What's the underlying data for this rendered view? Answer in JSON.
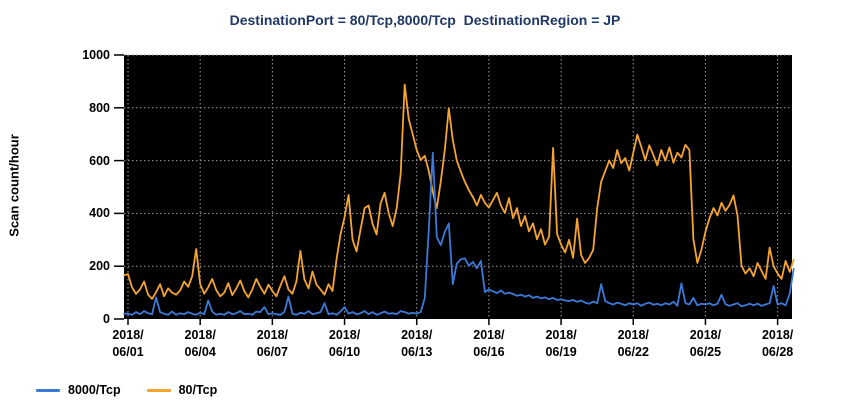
{
  "title": "DestinationPort = 80/Tcp,8000/Tcp  DestinationRegion = JP",
  "title_color": "#1f3864",
  "chart_data": {
    "type": "line",
    "title": "DestinationPort = 80/Tcp,8000/Tcp  DestinationRegion = JP",
    "xlabel": "",
    "ylabel": "Scan count/hour",
    "ylim": [
      0,
      1000
    ],
    "y_ticks": [
      0,
      200,
      400,
      600,
      800,
      1000
    ],
    "x_tick_dates": [
      "2018/06/01",
      "2018/06/04",
      "2018/06/07",
      "2018/06/10",
      "2018/06/13",
      "2018/06/16",
      "2018/06/19",
      "2018/06/22",
      "2018/06/25",
      "2018/06/28"
    ],
    "x_tick_days": [
      0,
      3,
      6,
      9,
      12,
      15,
      18,
      21,
      24,
      27
    ],
    "x_range_days": [
      0,
      27.8
    ],
    "sample_interval_hours": 4,
    "grid": "dotted",
    "grid_color": "#9e9e9e",
    "plot_bg": "#000000",
    "legend_position": "bottom-left",
    "series": [
      {
        "name": "8000/Tcp",
        "color": "#3b7ad9",
        "values": [
          20,
          20,
          16,
          26,
          18,
          30,
          22,
          18,
          82,
          26,
          20,
          16,
          28,
          16,
          22,
          18,
          26,
          20,
          16,
          24,
          18,
          70,
          28,
          16,
          20,
          16,
          26,
          18,
          22,
          30,
          18,
          20,
          16,
          28,
          26,
          45,
          18,
          22,
          18,
          16,
          26,
          85,
          20,
          16,
          24,
          20,
          30,
          18,
          22,
          26,
          60,
          18,
          22,
          16,
          28,
          45,
          20,
          26,
          18,
          22,
          30,
          18,
          26,
          16,
          22,
          28,
          20,
          22,
          18,
          30,
          26,
          20,
          24,
          20,
          26,
          80,
          340,
          630,
          310,
          280,
          330,
          362,
          132,
          210,
          226,
          230,
          202,
          216,
          192,
          220,
          102,
          112,
          105,
          98,
          108,
          96,
          100,
          95,
          88,
          92,
          85,
          90,
          80,
          85,
          78,
          82,
          75,
          80,
          72,
          75,
          70,
          68,
          72,
          65,
          70,
          62,
          58,
          66,
          60,
          132,
          68,
          60,
          55,
          62,
          58,
          52,
          60,
          55,
          60,
          50,
          58,
          62,
          54,
          58,
          52,
          60,
          55,
          65,
          50,
          135,
          60,
          55,
          80,
          52,
          58,
          55,
          60,
          52,
          58,
          92,
          56,
          50,
          55,
          60,
          48,
          52,
          58,
          52,
          58,
          50,
          55,
          60,
          125,
          55,
          60,
          52,
          95,
          190
        ]
      },
      {
        "name": "80/Tcp",
        "color": "#f5a42d",
        "values": [
          165,
          170,
          120,
          95,
          112,
          142,
          92,
          76,
          102,
          132,
          86,
          116,
          100,
          92,
          108,
          142,
          122,
          162,
          265,
          132,
          96,
          120,
          152,
          110,
          86,
          100,
          136,
          90,
          116,
          146,
          106,
          82,
          112,
          152,
          122,
          96,
          130,
          106,
          86,
          126,
          162,
          112,
          96,
          142,
          258,
          150,
          116,
          180,
          130,
          112,
          92,
          132,
          106,
          225,
          320,
          385,
          470,
          300,
          256,
          340,
          420,
          430,
          360,
          320,
          438,
          478,
          400,
          352,
          420,
          552,
          888,
          758,
          700,
          640,
          602,
          618,
          560,
          482,
          420,
          522,
          640,
          798,
          678,
          600,
          558,
          520,
          488,
          462,
          430,
          470,
          440,
          422,
          450,
          478,
          430,
          402,
          458,
          382,
          420,
          352,
          390,
          332,
          362,
          302,
          340,
          282,
          312,
          648,
          322,
          282,
          252,
          300,
          232,
          380,
          242,
          212,
          232,
          262,
          420,
          520,
          560,
          600,
          572,
          640,
          590,
          610,
          562,
          630,
          698,
          652,
          602,
          658,
          622,
          582,
          640,
          600,
          650,
          592,
          630,
          612,
          660,
          640,
          302,
          212,
          262,
          330,
          382,
          420,
          392,
          440,
          410,
          432,
          468,
          392,
          202,
          172,
          192,
          162,
          212,
          182,
          152,
          270,
          200,
          172,
          152,
          220,
          178,
          225
        ]
      }
    ]
  },
  "legend": {
    "items": [
      {
        "label": "8000/Tcp",
        "color": "#3b7ad9"
      },
      {
        "label": "80/Tcp",
        "color": "#f5a42d"
      }
    ]
  }
}
